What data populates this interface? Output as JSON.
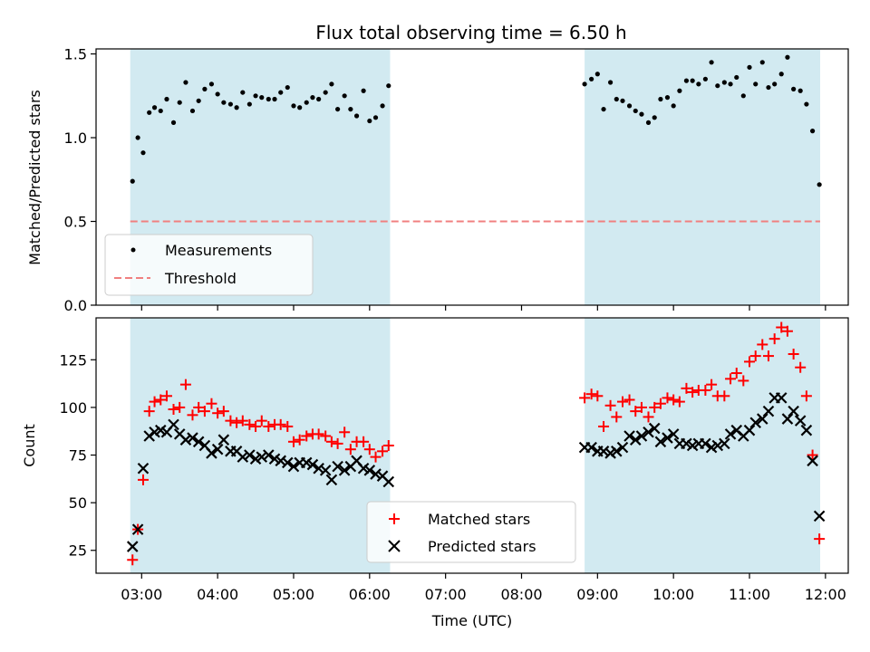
{
  "chart_data": {
    "type": "scatter",
    "title": "Flux total observing time = 6.50 h",
    "xlabel": "Time (UTC)",
    "x_ticks": [
      "03:00",
      "04:00",
      "05:00",
      "06:00",
      "07:00",
      "08:00",
      "09:00",
      "10:00",
      "11:00",
      "12:00"
    ],
    "x_range_hours": [
      2.4,
      12.3
    ],
    "shaded_intervals_hours": [
      [
        2.85,
        6.27
      ],
      [
        8.83,
        11.93
      ]
    ],
    "colors": {
      "shade": "#add8e6",
      "matched": "#ff0000",
      "predicted": "#000000",
      "threshold": "#f08080",
      "measurement": "#000000"
    },
    "panels": [
      {
        "name": "ratio",
        "ylabel": "Matched/Predicted stars",
        "ylim": [
          0,
          1.53
        ],
        "y_ticks": [
          "0.0",
          "0.5",
          "1.0",
          "1.5"
        ],
        "threshold": 0.5,
        "legend": {
          "placement": "lower-left",
          "entries": [
            "Measurements",
            "Threshold"
          ]
        },
        "series": [
          {
            "name": "Measurements",
            "points": [
              [
                2.88,
                0.74
              ],
              [
                2.95,
                1.0
              ],
              [
                3.02,
                0.91
              ],
              [
                3.1,
                1.15
              ],
              [
                3.17,
                1.18
              ],
              [
                3.25,
                1.16
              ],
              [
                3.33,
                1.23
              ],
              [
                3.42,
                1.09
              ],
              [
                3.5,
                1.21
              ],
              [
                3.58,
                1.33
              ],
              [
                3.67,
                1.16
              ],
              [
                3.75,
                1.22
              ],
              [
                3.83,
                1.29
              ],
              [
                3.92,
                1.32
              ],
              [
                4.0,
                1.26
              ],
              [
                4.08,
                1.21
              ],
              [
                4.17,
                1.2
              ],
              [
                4.25,
                1.18
              ],
              [
                4.33,
                1.27
              ],
              [
                4.42,
                1.2
              ],
              [
                4.5,
                1.25
              ],
              [
                4.58,
                1.24
              ],
              [
                4.67,
                1.23
              ],
              [
                4.75,
                1.23
              ],
              [
                4.83,
                1.27
              ],
              [
                4.92,
                1.3
              ],
              [
                5.0,
                1.19
              ],
              [
                5.08,
                1.18
              ],
              [
                5.17,
                1.21
              ],
              [
                5.25,
                1.24
              ],
              [
                5.33,
                1.23
              ],
              [
                5.42,
                1.27
              ],
              [
                5.5,
                1.32
              ],
              [
                5.58,
                1.17
              ],
              [
                5.67,
                1.25
              ],
              [
                5.75,
                1.17
              ],
              [
                5.83,
                1.13
              ],
              [
                5.92,
                1.28
              ],
              [
                6.0,
                1.1
              ],
              [
                6.08,
                1.12
              ],
              [
                6.17,
                1.19
              ],
              [
                6.25,
                1.31
              ],
              [
                8.83,
                1.32
              ],
              [
                8.92,
                1.35
              ],
              [
                9.0,
                1.38
              ],
              [
                9.08,
                1.17
              ],
              [
                9.17,
                1.33
              ],
              [
                9.25,
                1.23
              ],
              [
                9.33,
                1.22
              ],
              [
                9.42,
                1.19
              ],
              [
                9.5,
                1.16
              ],
              [
                9.58,
                1.14
              ],
              [
                9.67,
                1.09
              ],
              [
                9.75,
                1.12
              ],
              [
                9.83,
                1.23
              ],
              [
                9.92,
                1.24
              ],
              [
                10.0,
                1.19
              ],
              [
                10.08,
                1.28
              ],
              [
                10.17,
                1.34
              ],
              [
                10.25,
                1.34
              ],
              [
                10.33,
                1.32
              ],
              [
                10.42,
                1.35
              ],
              [
                10.5,
                1.45
              ],
              [
                10.58,
                1.31
              ],
              [
                10.67,
                1.33
              ],
              [
                10.75,
                1.32
              ],
              [
                10.83,
                1.36
              ],
              [
                10.92,
                1.25
              ],
              [
                11.0,
                1.42
              ],
              [
                11.08,
                1.32
              ],
              [
                11.17,
                1.45
              ],
              [
                11.25,
                1.3
              ],
              [
                11.33,
                1.32
              ],
              [
                11.42,
                1.38
              ],
              [
                11.5,
                1.48
              ],
              [
                11.58,
                1.29
              ],
              [
                11.67,
                1.28
              ],
              [
                11.75,
                1.2
              ],
              [
                11.83,
                1.04
              ],
              [
                11.92,
                0.72
              ]
            ]
          }
        ]
      },
      {
        "name": "count",
        "ylabel": "Count",
        "ylim": [
          13,
          147
        ],
        "y_ticks": [
          "25",
          "50",
          "75",
          "100",
          "125"
        ],
        "legend": {
          "placement": "lower-center",
          "entries": [
            "Matched stars",
            "Predicted stars"
          ]
        },
        "series": [
          {
            "name": "Matched stars",
            "points": [
              [
                2.88,
                20
              ],
              [
                2.95,
                36
              ],
              [
                3.02,
                62
              ],
              [
                3.1,
                98
              ],
              [
                3.17,
                103
              ],
              [
                3.25,
                104
              ],
              [
                3.33,
                106
              ],
              [
                3.42,
                99
              ],
              [
                3.5,
                100
              ],
              [
                3.58,
                112
              ],
              [
                3.67,
                96
              ],
              [
                3.75,
                100
              ],
              [
                3.83,
                98
              ],
              [
                3.92,
                102
              ],
              [
                4.0,
                97
              ],
              [
                4.08,
                98
              ],
              [
                4.17,
                93
              ],
              [
                4.25,
                92
              ],
              [
                4.33,
                93
              ],
              [
                4.42,
                91
              ],
              [
                4.5,
                90
              ],
              [
                4.58,
                93
              ],
              [
                4.67,
                90
              ],
              [
                4.75,
                91
              ],
              [
                4.83,
                91
              ],
              [
                4.92,
                90
              ],
              [
                5.0,
                82
              ],
              [
                5.08,
                83
              ],
              [
                5.17,
                85
              ],
              [
                5.25,
                86
              ],
              [
                5.33,
                86
              ],
              [
                5.42,
                85
              ],
              [
                5.5,
                82
              ],
              [
                5.58,
                81
              ],
              [
                5.67,
                87
              ],
              [
                5.75,
                78
              ],
              [
                5.83,
                82
              ],
              [
                5.92,
                82
              ],
              [
                6.0,
                78
              ],
              [
                6.08,
                74
              ],
              [
                6.17,
                77
              ],
              [
                6.25,
                80
              ],
              [
                8.83,
                105
              ],
              [
                8.92,
                107
              ],
              [
                9.0,
                106
              ],
              [
                9.08,
                90
              ],
              [
                9.17,
                101
              ],
              [
                9.25,
                95
              ],
              [
                9.33,
                103
              ],
              [
                9.42,
                104
              ],
              [
                9.5,
                98
              ],
              [
                9.58,
                100
              ],
              [
                9.67,
                95
              ],
              [
                9.75,
                100
              ],
              [
                9.83,
                102
              ],
              [
                9.92,
                105
              ],
              [
                10.0,
                104
              ],
              [
                10.08,
                103
              ],
              [
                10.17,
                110
              ],
              [
                10.25,
                108
              ],
              [
                10.33,
                109
              ],
              [
                10.42,
                109
              ],
              [
                10.5,
                112
              ],
              [
                10.58,
                106
              ],
              [
                10.67,
                106
              ],
              [
                10.75,
                115
              ],
              [
                10.83,
                118
              ],
              [
                10.92,
                114
              ],
              [
                11.0,
                124
              ],
              [
                11.08,
                127
              ],
              [
                11.17,
                133
              ],
              [
                11.25,
                127
              ],
              [
                11.33,
                136
              ],
              [
                11.42,
                142
              ],
              [
                11.5,
                140
              ],
              [
                11.58,
                128
              ],
              [
                11.67,
                121
              ],
              [
                11.75,
                106
              ],
              [
                11.83,
                75
              ],
              [
                11.92,
                31
              ]
            ]
          },
          {
            "name": "Predicted stars",
            "points": [
              [
                2.88,
                27
              ],
              [
                2.95,
                36
              ],
              [
                3.02,
                68
              ],
              [
                3.1,
                85
              ],
              [
                3.17,
                87
              ],
              [
                3.25,
                88
              ],
              [
                3.33,
                87
              ],
              [
                3.42,
                91
              ],
              [
                3.5,
                86
              ],
              [
                3.58,
                83
              ],
              [
                3.67,
                84
              ],
              [
                3.75,
                82
              ],
              [
                3.83,
                80
              ],
              [
                3.92,
                76
              ],
              [
                4.0,
                78
              ],
              [
                4.08,
                83
              ],
              [
                4.17,
                77
              ],
              [
                4.25,
                77
              ],
              [
                4.33,
                74
              ],
              [
                4.42,
                75
              ],
              [
                4.5,
                73
              ],
              [
                4.58,
                74
              ],
              [
                4.67,
                75
              ],
              [
                4.75,
                73
              ],
              [
                4.83,
                72
              ],
              [
                4.92,
                71
              ],
              [
                5.0,
                69
              ],
              [
                5.08,
                71
              ],
              [
                5.17,
                71
              ],
              [
                5.25,
                70
              ],
              [
                5.33,
                68
              ],
              [
                5.42,
                67
              ],
              [
                5.5,
                62
              ],
              [
                5.58,
                69
              ],
              [
                5.67,
                67
              ],
              [
                5.75,
                69
              ],
              [
                5.83,
                72
              ],
              [
                5.92,
                68
              ],
              [
                6.0,
                67
              ],
              [
                6.08,
                65
              ],
              [
                6.17,
                64
              ],
              [
                6.25,
                61
              ],
              [
                8.83,
                79
              ],
              [
                8.92,
                79
              ],
              [
                9.0,
                77
              ],
              [
                9.08,
                77
              ],
              [
                9.17,
                76
              ],
              [
                9.25,
                77
              ],
              [
                9.33,
                79
              ],
              [
                9.42,
                85
              ],
              [
                9.5,
                83
              ],
              [
                9.58,
                85
              ],
              [
                9.67,
                87
              ],
              [
                9.75,
                89
              ],
              [
                9.83,
                82
              ],
              [
                9.92,
                84
              ],
              [
                10.0,
                86
              ],
              [
                10.08,
                81
              ],
              [
                10.17,
                81
              ],
              [
                10.25,
                80
              ],
              [
                10.33,
                81
              ],
              [
                10.42,
                81
              ],
              [
                10.5,
                79
              ],
              [
                10.58,
                80
              ],
              [
                10.67,
                81
              ],
              [
                10.75,
                86
              ],
              [
                10.83,
                88
              ],
              [
                10.92,
                85
              ],
              [
                11.0,
                88
              ],
              [
                11.08,
                92
              ],
              [
                11.17,
                94
              ],
              [
                11.25,
                98
              ],
              [
                11.33,
                105
              ],
              [
                11.42,
                105
              ],
              [
                11.5,
                94
              ],
              [
                11.58,
                98
              ],
              [
                11.67,
                93
              ],
              [
                11.75,
                88
              ],
              [
                11.83,
                72
              ],
              [
                11.92,
                43
              ]
            ]
          }
        ]
      }
    ]
  }
}
